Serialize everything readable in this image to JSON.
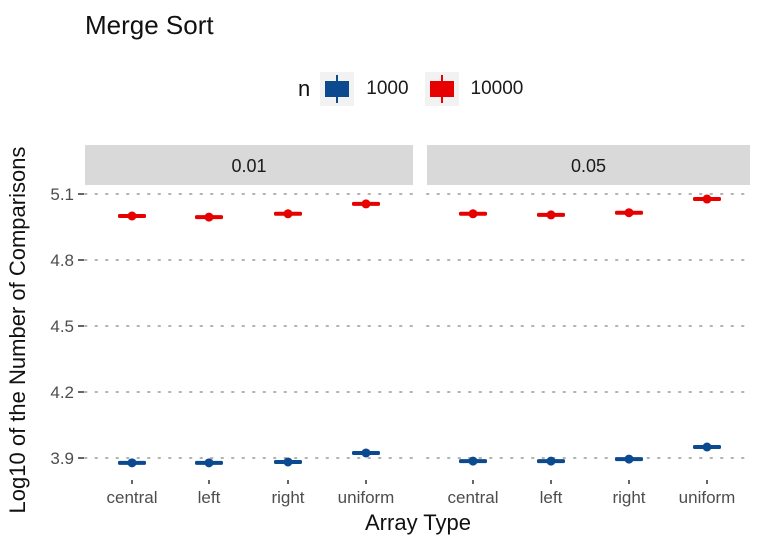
{
  "chart_data": {
    "type": "boxplot",
    "title": "Merge Sort",
    "xlabel": "Array Type",
    "ylabel": "Log10 of the Number of Comparisons",
    "ylim": [
      3.87,
      5.13
    ],
    "yticks": [
      3.9,
      4.2,
      4.5,
      4.8,
      5.1
    ],
    "ytick_labels": [
      "3.9",
      "4.2",
      "4.5",
      "4.8",
      "5.1"
    ],
    "grid": "horizontal dotted major gridlines",
    "legend": {
      "title": "n",
      "position": "top",
      "entries": [
        {
          "label": "1000",
          "color": "#0b4a8f"
        },
        {
          "label": "10000",
          "color": "#e60000"
        }
      ]
    },
    "facets": [
      "0.01",
      "0.05"
    ],
    "categories": [
      "central",
      "left",
      "right",
      "uniform"
    ],
    "series": [
      {
        "facet": "0.01",
        "name": "1000",
        "values": [
          3.878,
          3.878,
          3.882,
          3.923
        ]
      },
      {
        "facet": "0.01",
        "name": "10000",
        "values": [
          5.0,
          4.995,
          5.01,
          5.055
        ]
      },
      {
        "facet": "0.05",
        "name": "1000",
        "values": [
          3.886,
          3.886,
          3.895,
          3.95
        ]
      },
      {
        "facet": "0.05",
        "name": "10000",
        "values": [
          5.01,
          5.005,
          5.015,
          5.077
        ]
      }
    ]
  },
  "labels": {
    "title": "Merge Sort",
    "xlabel": "Array Type",
    "ylabel": "Log10 of the Number of Comparisons",
    "legend_title": "n",
    "legend_1": "1000",
    "legend_2": "10000"
  },
  "colors": {
    "n1000": "#0b4a8f",
    "n10000": "#e60000",
    "strip": "#d9d9d9",
    "grid": "#b3b3b3"
  }
}
